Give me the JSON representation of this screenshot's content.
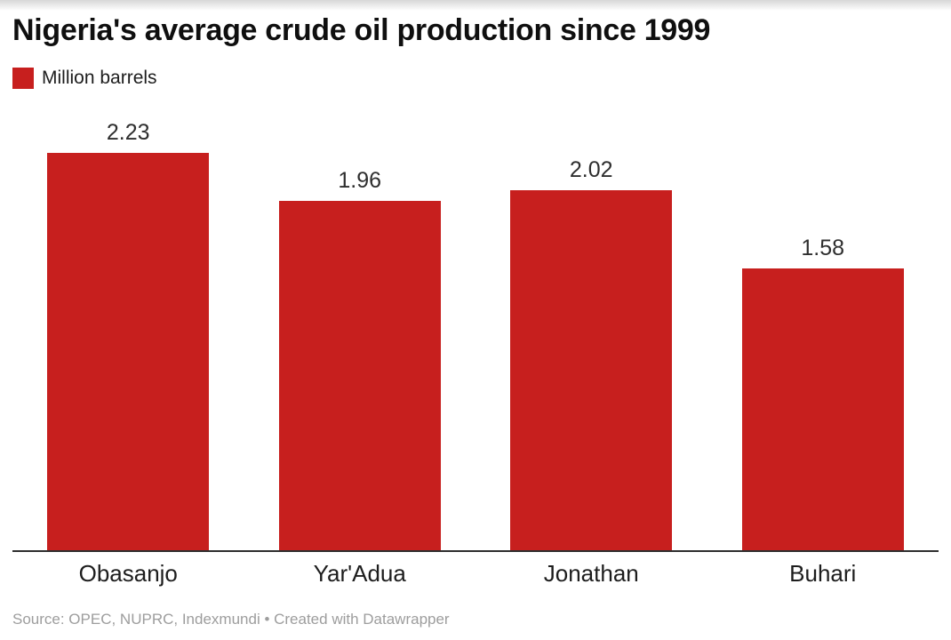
{
  "page": {
    "title": "Nigeria's average crude oil production since 1999"
  },
  "legend": {
    "label": "Million barrels",
    "swatch_color": "#c71f1e"
  },
  "colors": {
    "bar": "#c71f1e",
    "axis_line": "#2e2e2e",
    "title_text": "#0f0f0f",
    "value_label": "#2e2e2e",
    "category_label": "#1d1d1d",
    "source_text": "#9d9d9d",
    "background": "#ffffff"
  },
  "footer": {
    "attribution": "Source: OPEC, NUPRC, Indexmundi • Created with Datawrapper"
  },
  "chart_data": {
    "type": "bar",
    "title": "Nigeria's average crude oil production since 1999",
    "legend_entries": [
      {
        "label": "Million barrels",
        "color": "#c71f1e"
      }
    ],
    "legend_position": "top-left",
    "categories": [
      "Obasanjo",
      "Yar'Adua",
      "Jonathan",
      "Buhari"
    ],
    "values": [
      2.23,
      1.96,
      2.02,
      1.58
    ],
    "value_labels": [
      "2.23",
      "1.96",
      "2.02",
      "1.58"
    ],
    "xlabel": "",
    "ylabel": "Million barrels",
    "ylim": [
      0,
      2.44
    ],
    "grid": false,
    "value_labels_shown": true,
    "source": "Source: OPEC, NUPRC, Indexmundi • Created with Datawrapper"
  }
}
